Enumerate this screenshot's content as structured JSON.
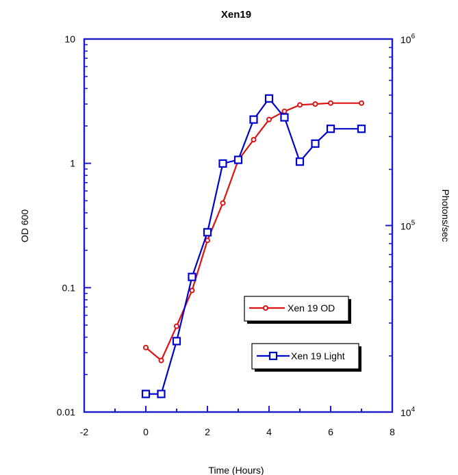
{
  "chart_data": {
    "type": "line",
    "title": "Xen19",
    "xlabel": "Time (Hours)",
    "ylabel_left": "OD 600",
    "ylabel_right": "Photons/sec",
    "xlim": [
      -2,
      8
    ],
    "x_ticks": [
      "-2",
      "0",
      "2",
      "4",
      "6",
      "8"
    ],
    "y_left_scale": "log",
    "y_left_lim": [
      0.01,
      10
    ],
    "y_left_ticks": [
      "0.01",
      "0.1",
      "1",
      "10"
    ],
    "y_right_scale": "log",
    "y_right_lim": [
      10000,
      1000000
    ],
    "y_right_ticks": [
      {
        "base": "10",
        "exp": "4"
      },
      {
        "base": "10",
        "exp": "5"
      },
      {
        "base": "10",
        "exp": "6"
      }
    ],
    "grid": false,
    "legend_placement": "inside-bottom-right",
    "series": [
      {
        "name": "Xen 19 OD",
        "axis": "left",
        "color": "#dd1111",
        "marker": "circle",
        "x": [
          0,
          0.5,
          1,
          1.5,
          2,
          2.5,
          3,
          3.5,
          4,
          4.5,
          5,
          5.5,
          6,
          7
        ],
        "y": [
          0.033,
          0.026,
          0.049,
          0.095,
          0.24,
          0.48,
          1.06,
          1.55,
          2.25,
          2.62,
          2.95,
          3.0,
          3.05,
          3.05
        ]
      },
      {
        "name": "Xen 19 Light",
        "axis": "right",
        "color": "#0000cc",
        "marker": "square",
        "x": [
          0,
          0.5,
          1,
          1.5,
          2,
          2.5,
          3,
          3.5,
          4,
          4.5,
          5,
          5.5,
          6,
          7
        ],
        "y": [
          12500,
          12500,
          24000,
          53000,
          92000,
          215000,
          225000,
          370000,
          480000,
          380000,
          220000,
          275000,
          330000,
          330000
        ]
      }
    ]
  }
}
